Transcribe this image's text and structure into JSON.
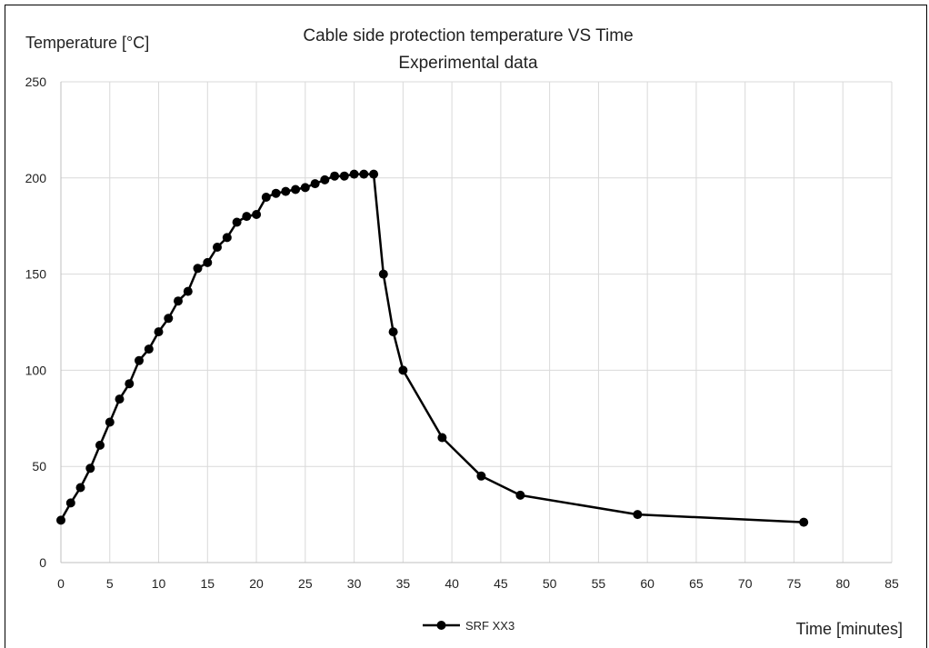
{
  "chart_data": {
    "type": "line",
    "title_lines": [
      "Cable side protection temperature VS Time",
      "Experimental data"
    ],
    "xlabel": "Time  [minutes]",
    "ylabel": "Temperature [°C]",
    "xlim": [
      0,
      85
    ],
    "ylim": [
      0,
      250
    ],
    "xticks": [
      0,
      5,
      10,
      15,
      20,
      25,
      30,
      35,
      40,
      45,
      50,
      55,
      60,
      65,
      70,
      75,
      80,
      85
    ],
    "yticks": [
      0,
      50,
      100,
      150,
      200,
      250
    ],
    "grid": true,
    "legend_position": "bottom",
    "series": [
      {
        "name": "SRF XX3",
        "color": "#000000",
        "marker": "circle",
        "points": [
          [
            0,
            22
          ],
          [
            1,
            31
          ],
          [
            2,
            39
          ],
          [
            3,
            49
          ],
          [
            4,
            61
          ],
          [
            5,
            73
          ],
          [
            6,
            85
          ],
          [
            7,
            93
          ],
          [
            8,
            105
          ],
          [
            9,
            111
          ],
          [
            10,
            120
          ],
          [
            11,
            127
          ],
          [
            12,
            136
          ],
          [
            13,
            141
          ],
          [
            14,
            153
          ],
          [
            15,
            156
          ],
          [
            16,
            164
          ],
          [
            17,
            169
          ],
          [
            18,
            177
          ],
          [
            19,
            180
          ],
          [
            20,
            181
          ],
          [
            21,
            190
          ],
          [
            22,
            192
          ],
          [
            23,
            193
          ],
          [
            24,
            194
          ],
          [
            25,
            195
          ],
          [
            26,
            197
          ],
          [
            27,
            199
          ],
          [
            28,
            201
          ],
          [
            29,
            201
          ],
          [
            30,
            202
          ],
          [
            31,
            202
          ],
          [
            32,
            202
          ],
          [
            33,
            150
          ],
          [
            34,
            120
          ],
          [
            35,
            100
          ],
          [
            39,
            65
          ],
          [
            43,
            45
          ],
          [
            47,
            35
          ],
          [
            59,
            25
          ],
          [
            76,
            21
          ]
        ]
      }
    ]
  }
}
